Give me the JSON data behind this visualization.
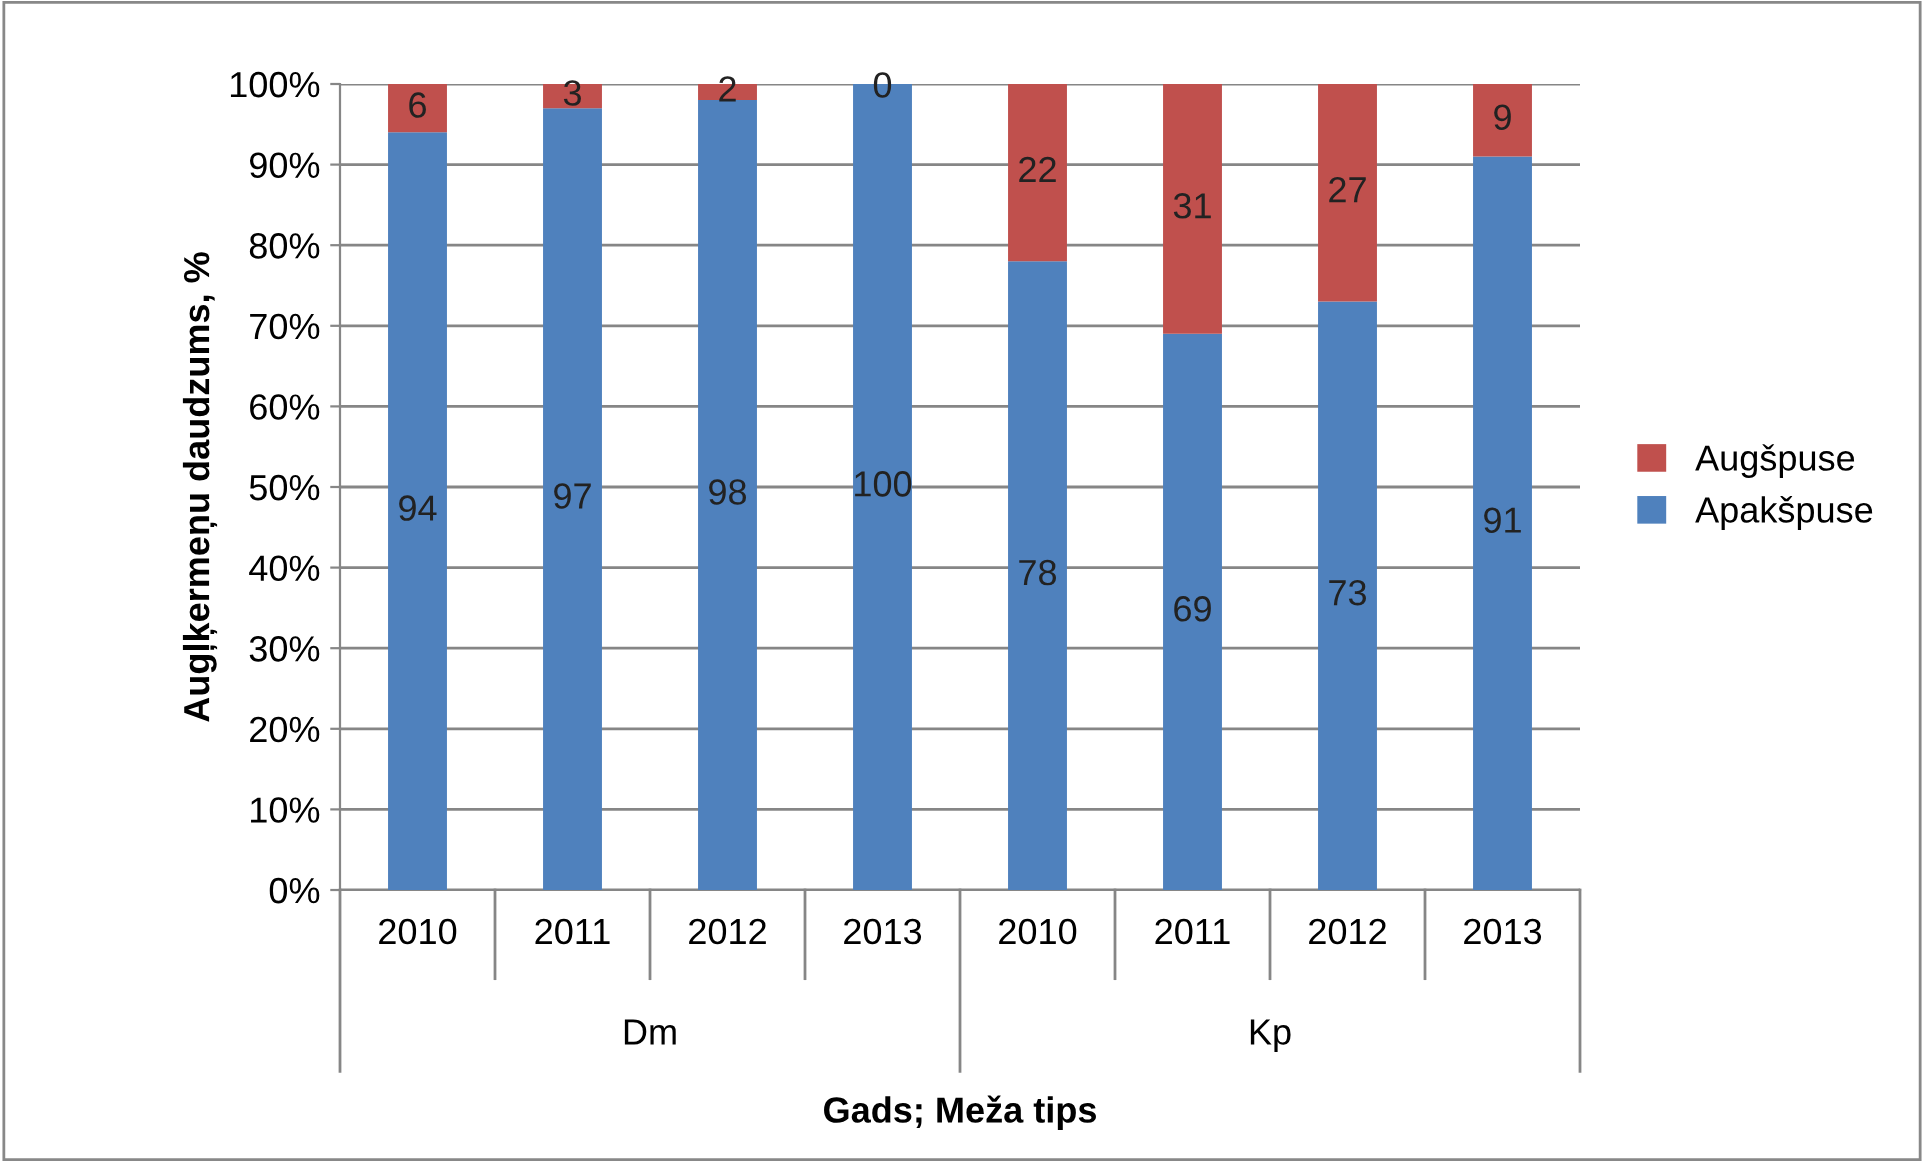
{
  "chart_data": {
    "type": "bar",
    "stacked": true,
    "xlabel": "Gads; Meža tips",
    "ylabel": "Augļķermeņu daudzums, %",
    "categories": [
      "2010",
      "2011",
      "2012",
      "2013",
      "2010",
      "2011",
      "2012",
      "2013"
    ],
    "series": [
      {
        "name": "Apakšpuse",
        "color": "#4f81bd",
        "values": [
          94,
          97,
          98,
          100,
          78,
          69,
          73,
          91
        ]
      },
      {
        "name": "Augšpuse",
        "color": "#c0504d",
        "values": [
          6,
          3,
          2,
          0,
          22,
          31,
          27,
          9
        ]
      }
    ],
    "annotations": [
      "Dm",
      "Kp"
    ],
    "ylim": [
      0,
      100
    ],
    "yticks": [
      {
        "value": 0,
        "label": "0%"
      },
      {
        "value": 10,
        "label": "10%"
      },
      {
        "value": 20,
        "label": "20%"
      },
      {
        "value": 30,
        "label": "30%"
      },
      {
        "value": 40,
        "label": "40%"
      },
      {
        "value": 50,
        "label": "50%"
      },
      {
        "value": 60,
        "label": "60%"
      },
      {
        "value": 70,
        "label": "70%"
      },
      {
        "value": 80,
        "label": "80%"
      },
      {
        "value": 90,
        "label": "90%"
      },
      {
        "value": 100,
        "label": "100%"
      }
    ],
    "grid": "y",
    "legend": "right",
    "data_labels": true
  }
}
